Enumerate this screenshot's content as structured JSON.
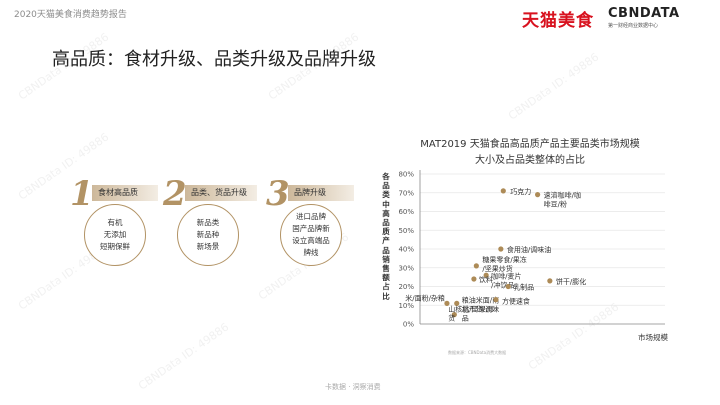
{
  "header": {
    "report_title": "2020天猫美食消费趋势报告",
    "logo_tmall": "天猫美食",
    "logo_cbndata": "CBNDATA",
    "logo_cbndata_sub": "第一财经商业数据中心"
  },
  "page_title": "高品质：食材升级、品类升级及品牌升级",
  "watermark_text": "CBNData ID: 49886",
  "pillars": [
    {
      "number": "1",
      "label": "食材高品质",
      "items": [
        "有机",
        "无添加",
        "短期保鲜"
      ]
    },
    {
      "number": "2",
      "label": "品类、货品升级",
      "items": [
        "新品类",
        "新品种",
        "新场景"
      ]
    },
    {
      "number": "3",
      "label": "品牌升级",
      "items": [
        "进口品牌",
        "国产品牌新",
        "设立高端品",
        "牌线"
      ]
    }
  ],
  "colors": {
    "accent": "#b29365",
    "brand_red": "#d8121f",
    "grid": "#e6e6e6",
    "point": "#ad8b57"
  },
  "chart_data": {
    "type": "scatter",
    "title_line1": "MAT2019 天猫食品高品质产品主要品类市场规模",
    "title_line2": "大小及占品类整体的占比",
    "ylabel": "各品类中高品质产品销售额占比",
    "xlabel": "市场规模",
    "y_tick_labels": [
      "0%",
      "10%",
      "20%",
      "30%",
      "40%",
      "50%",
      "60%",
      "70%",
      "80%"
    ],
    "ylim": [
      0,
      80
    ],
    "points": [
      {
        "label": "巧克力",
        "x": 0.34,
        "y": 71
      },
      {
        "label": "速溶咖啡/咖啡豆/粉",
        "x": 0.48,
        "y": 69
      },
      {
        "label": "食用油/调味油",
        "x": 0.33,
        "y": 40
      },
      {
        "label": "糖果零食/果冻/坚果炒货",
        "x": 0.23,
        "y": 31
      },
      {
        "label": "咖啡/麦片/冲饮品",
        "x": 0.27,
        "y": 26
      },
      {
        "label": "饮料",
        "x": 0.22,
        "y": 24
      },
      {
        "label": "乳制品",
        "x": 0.36,
        "y": 20
      },
      {
        "label": "饼干/膨化",
        "x": 0.53,
        "y": 23
      },
      {
        "label": "米/面粉/杂粮",
        "x": 0.11,
        "y": 11
      },
      {
        "label": "粮油米面/南北干货/调味品",
        "x": 0.15,
        "y": 11
      },
      {
        "label": "方便速食",
        "x": 0.31,
        "y": 13
      },
      {
        "label": "山核桃/坚果/炒货",
        "x": 0.14,
        "y": 5
      }
    ]
  },
  "source_note": "数据来源：CBNData消费大数据",
  "footer": "卡数据 · 洞察消费"
}
